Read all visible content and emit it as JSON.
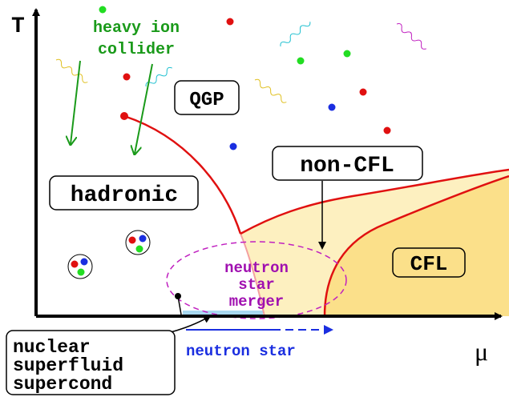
{
  "axes": {
    "y_label": "T",
    "x_label": "μ"
  },
  "labels": {
    "collider": [
      "heavy ion",
      "collider"
    ],
    "qgp": "QGP",
    "non_cfl": "non-CFL",
    "hadronic": "hadronic",
    "cfl": "CFL",
    "merger": [
      "neutron",
      "star",
      "merger"
    ],
    "nuclear": [
      "nuclear",
      "superfluid",
      "supercond"
    ],
    "neutron_star": "neutron star"
  }
}
